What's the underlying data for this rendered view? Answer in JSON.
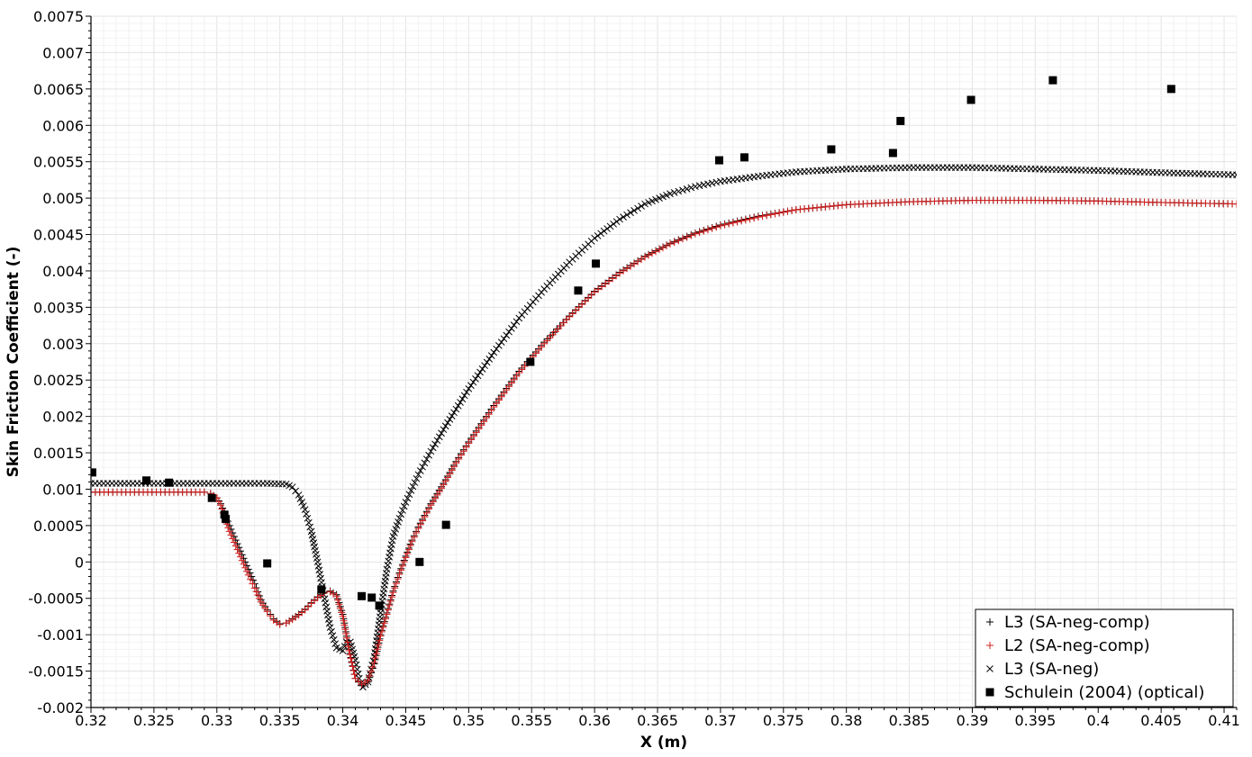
{
  "chart_data": {
    "type": "scatter",
    "title": "",
    "xlabel": "X (m)",
    "ylabel": "Skin Friction Coefficient (-)",
    "xlim": [
      0.32,
      0.411
    ],
    "ylim": [
      -0.002,
      0.0075
    ],
    "x_ticks": [
      0.32,
      0.325,
      0.33,
      0.335,
      0.34,
      0.345,
      0.35,
      0.355,
      0.36,
      0.365,
      0.37,
      0.375,
      0.38,
      0.385,
      0.39,
      0.395,
      0.4,
      0.405,
      0.41
    ],
    "x_tick_labels": [
      "0.32",
      "0.325",
      "0.33",
      "0.335",
      "0.34",
      "0.345",
      "0.35",
      "0.355",
      "0.36",
      "0.365",
      "0.37",
      "0.375",
      "0.38",
      "0.385",
      "0.39",
      "0.395",
      "0.4",
      "0.405",
      "0.41"
    ],
    "y_ticks": [
      -0.002,
      -0.0015,
      -0.001,
      -0.0005,
      0,
      0.0005,
      0.001,
      0.0015,
      0.002,
      0.0025,
      0.003,
      0.0035,
      0.004,
      0.0045,
      0.005,
      0.0055,
      0.006,
      0.0065,
      0.007,
      0.0075
    ],
    "y_tick_labels": [
      "-0.002",
      "-0.0015",
      "-0.001",
      "-0.0005",
      "0",
      "0.0005",
      "0.001",
      "0.0015",
      "0.002",
      "0.0025",
      "0.003",
      "0.0035",
      "0.004",
      "0.0045",
      "0.005",
      "0.0055",
      "0.006",
      "0.0065",
      "0.007",
      "0.0075"
    ],
    "grid": true,
    "legend_position": "bottom-right",
    "series": [
      {
        "name": "L3 (SA-neg-comp)",
        "marker": "plus",
        "color": "#000000",
        "points": [
          [
            0.32,
            0.00096
          ],
          [
            0.329,
            0.00096
          ],
          [
            0.3295,
            0.00094
          ],
          [
            0.33,
            0.00088
          ],
          [
            0.3303,
            0.0008
          ],
          [
            0.3306,
            0.00068
          ],
          [
            0.331,
            0.0005
          ],
          [
            0.3315,
            0.0003
          ],
          [
            0.332,
            0.0001
          ],
          [
            0.3325,
            -0.0001
          ],
          [
            0.333,
            -0.0003
          ],
          [
            0.3335,
            -0.00052
          ],
          [
            0.334,
            -0.00066
          ],
          [
            0.3345,
            -0.00078
          ],
          [
            0.335,
            -0.00085
          ],
          [
            0.3355,
            -0.00084
          ],
          [
            0.336,
            -0.00078
          ],
          [
            0.3365,
            -0.00072
          ],
          [
            0.337,
            -0.00065
          ],
          [
            0.3375,
            -0.00056
          ],
          [
            0.338,
            -0.00048
          ],
          [
            0.3385,
            -0.00042
          ],
          [
            0.339,
            -0.0004
          ],
          [
            0.3395,
            -0.00045
          ],
          [
            0.34,
            -0.00072
          ],
          [
            0.3405,
            -0.0012
          ],
          [
            0.341,
            -0.0016
          ],
          [
            0.3415,
            -0.0017
          ],
          [
            0.342,
            -0.00165
          ],
          [
            0.3425,
            -0.0014
          ],
          [
            0.343,
            -0.001
          ],
          [
            0.3435,
            -0.0007
          ],
          [
            0.344,
            -0.0004
          ],
          [
            0.3445,
            -0.00015
          ],
          [
            0.345,
            8e-05
          ],
          [
            0.3455,
            0.0003
          ],
          [
            0.346,
            0.00048
          ],
          [
            0.347,
            0.0008
          ],
          [
            0.348,
            0.00108
          ],
          [
            0.349,
            0.00138
          ],
          [
            0.35,
            0.00165
          ],
          [
            0.352,
            0.00215
          ],
          [
            0.354,
            0.00262
          ],
          [
            0.356,
            0.00302
          ],
          [
            0.358,
            0.00338
          ],
          [
            0.36,
            0.00372
          ],
          [
            0.362,
            0.00398
          ],
          [
            0.364,
            0.0042
          ],
          [
            0.366,
            0.00438
          ],
          [
            0.368,
            0.00452
          ],
          [
            0.37,
            0.00463
          ],
          [
            0.373,
            0.00475
          ],
          [
            0.376,
            0.00484
          ],
          [
            0.38,
            0.00491
          ],
          [
            0.385,
            0.00495
          ],
          [
            0.39,
            0.00497
          ],
          [
            0.395,
            0.00497
          ],
          [
            0.4,
            0.00496
          ],
          [
            0.405,
            0.00494
          ],
          [
            0.411,
            0.00492
          ]
        ]
      },
      {
        "name": "L2 (SA-neg-comp)",
        "marker": "plus",
        "color": "#d42020",
        "points": [
          [
            0.32,
            0.00096
          ],
          [
            0.329,
            0.00096
          ],
          [
            0.3295,
            0.00094
          ],
          [
            0.33,
            0.00088
          ],
          [
            0.3303,
            0.00078
          ],
          [
            0.3306,
            0.00062
          ],
          [
            0.331,
            0.00042
          ],
          [
            0.3315,
            0.00022
          ],
          [
            0.332,
            2e-05
          ],
          [
            0.3325,
            -0.00018
          ],
          [
            0.333,
            -0.00036
          ],
          [
            0.3335,
            -0.00055
          ],
          [
            0.334,
            -0.00068
          ],
          [
            0.3345,
            -0.0008
          ],
          [
            0.335,
            -0.00086
          ],
          [
            0.3355,
            -0.00084
          ],
          [
            0.336,
            -0.00079
          ],
          [
            0.3365,
            -0.00073
          ],
          [
            0.337,
            -0.00066
          ],
          [
            0.3375,
            -0.00057
          ],
          [
            0.338,
            -0.00049
          ],
          [
            0.3385,
            -0.00043
          ],
          [
            0.339,
            -0.00041
          ],
          [
            0.3395,
            -0.00047
          ],
          [
            0.34,
            -0.00075
          ],
          [
            0.3405,
            -0.00122
          ],
          [
            0.341,
            -0.0016
          ],
          [
            0.3415,
            -0.00168
          ],
          [
            0.342,
            -0.00163
          ],
          [
            0.3425,
            -0.00138
          ],
          [
            0.343,
            -0.00102
          ],
          [
            0.3435,
            -0.00072
          ],
          [
            0.344,
            -0.00042
          ],
          [
            0.3445,
            -0.00017
          ],
          [
            0.345,
            6e-05
          ],
          [
            0.3455,
            0.00028
          ],
          [
            0.346,
            0.00046
          ],
          [
            0.347,
            0.00078
          ],
          [
            0.348,
            0.00106
          ],
          [
            0.349,
            0.00136
          ],
          [
            0.35,
            0.00163
          ],
          [
            0.352,
            0.00213
          ],
          [
            0.354,
            0.0026
          ],
          [
            0.356,
            0.003
          ],
          [
            0.358,
            0.00337
          ],
          [
            0.36,
            0.00371
          ],
          [
            0.362,
            0.00397
          ],
          [
            0.364,
            0.00419
          ],
          [
            0.366,
            0.00437
          ],
          [
            0.368,
            0.00451
          ],
          [
            0.37,
            0.00462
          ],
          [
            0.373,
            0.00474
          ],
          [
            0.376,
            0.00484
          ],
          [
            0.38,
            0.00491
          ],
          [
            0.385,
            0.00495
          ],
          [
            0.39,
            0.00497
          ],
          [
            0.395,
            0.00497
          ],
          [
            0.4,
            0.00496
          ],
          [
            0.405,
            0.00494
          ],
          [
            0.411,
            0.00492
          ]
        ]
      },
      {
        "name": "L3 (SA-neg)",
        "marker": "x",
        "color": "#000000",
        "points": [
          [
            0.32,
            0.00108
          ],
          [
            0.33,
            0.00108
          ],
          [
            0.334,
            0.00108
          ],
          [
            0.3355,
            0.00107
          ],
          [
            0.336,
            0.00103
          ],
          [
            0.3365,
            0.00092
          ],
          [
            0.337,
            0.00072
          ],
          [
            0.3375,
            0.00042
          ],
          [
            0.338,
            0.0
          ],
          [
            0.3385,
            -0.00045
          ],
          [
            0.339,
            -0.0009
          ],
          [
            0.3395,
            -0.00118
          ],
          [
            0.34,
            -0.00122
          ],
          [
            0.3403,
            -0.0011
          ],
          [
            0.3406,
            -0.0011
          ],
          [
            0.341,
            -0.00135
          ],
          [
            0.3413,
            -0.0016
          ],
          [
            0.3416,
            -0.00172
          ],
          [
            0.342,
            -0.00165
          ],
          [
            0.3425,
            -0.0013
          ],
          [
            0.343,
            -0.0007
          ],
          [
            0.3435,
            -0.0001
          ],
          [
            0.344,
            0.00035
          ],
          [
            0.3445,
            0.0006
          ],
          [
            0.345,
            0.00082
          ],
          [
            0.346,
            0.0012
          ],
          [
            0.347,
            0.00152
          ],
          [
            0.348,
            0.00182
          ],
          [
            0.35,
            0.00238
          ],
          [
            0.352,
            0.00288
          ],
          [
            0.354,
            0.00335
          ],
          [
            0.356,
            0.00375
          ],
          [
            0.358,
            0.00412
          ],
          [
            0.36,
            0.00445
          ],
          [
            0.362,
            0.00471
          ],
          [
            0.364,
            0.00492
          ],
          [
            0.366,
            0.00506
          ],
          [
            0.368,
            0.00516
          ],
          [
            0.37,
            0.00523
          ],
          [
            0.373,
            0.0053
          ],
          [
            0.376,
            0.00536
          ],
          [
            0.38,
            0.0054
          ],
          [
            0.385,
            0.00542
          ],
          [
            0.39,
            0.00542
          ],
          [
            0.395,
            0.0054
          ],
          [
            0.4,
            0.00538
          ],
          [
            0.405,
            0.00535
          ],
          [
            0.411,
            0.00532
          ]
        ]
      },
      {
        "name": "Schulein (2004) (optical)",
        "marker": "square",
        "color": "#000000",
        "points": [
          [
            0.3201,
            0.00123
          ],
          [
            0.3244,
            0.00112
          ],
          [
            0.3262,
            0.00109
          ],
          [
            0.3296,
            0.00088
          ],
          [
            0.3306,
            0.00065
          ],
          [
            0.3307,
            0.00059
          ],
          [
            0.334,
            -2e-05
          ],
          [
            0.3383,
            -0.00038
          ],
          [
            0.3415,
            -0.00047
          ],
          [
            0.3423,
            -0.00049
          ],
          [
            0.3429,
            -0.0006
          ],
          [
            0.3461,
            0.0
          ],
          [
            0.3482,
            0.00051
          ],
          [
            0.3549,
            0.00275
          ],
          [
            0.3587,
            0.00373
          ],
          [
            0.3601,
            0.0041
          ],
          [
            0.3699,
            0.00552
          ],
          [
            0.3719,
            0.00556
          ],
          [
            0.3788,
            0.00567
          ],
          [
            0.3837,
            0.00562
          ],
          [
            0.3843,
            0.00606
          ],
          [
            0.3899,
            0.00635
          ],
          [
            0.3964,
            0.00662
          ],
          [
            0.4058,
            0.0065
          ]
        ]
      }
    ]
  }
}
